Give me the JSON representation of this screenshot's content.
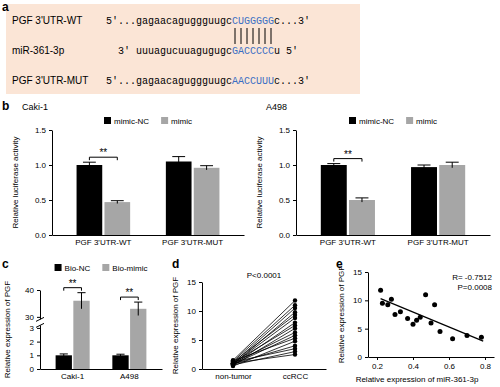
{
  "diagram": {
    "label": "a",
    "rows": [
      {
        "name": "PGF 3'UTR-WT",
        "parts": [
          "5'...gagaacaguggguugc",
          "CUGGGGG",
          "c...3'"
        ]
      },
      {
        "name": "miR-361-3p",
        "parts": [
          "3' uuuagucuuagugugc",
          "GACCCCC",
          "u 5'"
        ]
      },
      {
        "name": "PGF 3'UTR-MUT",
        "parts": [
          "5'...gagaacaguggguugc",
          "AACCUUU",
          "c...3'"
        ]
      }
    ]
  },
  "chart_data": [
    {
      "type": "bar",
      "label": "b",
      "title": "Caki-1",
      "y_label": "Relative luciferase activity",
      "categories": [
        "PGF 3'UTR-WT",
        "PGF 3'UTR-MUT"
      ],
      "series": [
        {
          "name": "mimic-NC",
          "color": "#000000",
          "values": [
            1.0,
            1.05
          ],
          "errors": [
            0.04,
            0.07
          ]
        },
        {
          "name": "mimic",
          "color": "#a6a6a6",
          "values": [
            0.47,
            0.96
          ],
          "errors": [
            0.02,
            0.03
          ]
        }
      ],
      "ylim": [
        0,
        1.5
      ],
      "yticks": [
        {
          "value": 0,
          "label": "0.0"
        },
        0.5,
        {
          "value": 1,
          "label": "1.0"
        },
        1.5
      ],
      "legend": "top",
      "annotations": [
        {
          "text": "**",
          "category": "PGF 3'UTR-WT"
        }
      ]
    },
    {
      "type": "bar",
      "title": "A498",
      "y_label": "Relative luciferase activity",
      "categories": [
        "PGF 3'UTR-WT",
        "PGF 3'UTR-MUT"
      ],
      "series": [
        {
          "name": "mimic-NC",
          "color": "#000000",
          "values": [
            1.0,
            0.97
          ],
          "errors": [
            0.02,
            0.03
          ]
        },
        {
          "name": "mimic",
          "color": "#a6a6a6",
          "values": [
            0.5,
            1.0
          ],
          "errors": [
            0.03,
            0.04
          ]
        }
      ],
      "ylim": [
        0,
        1.5
      ],
      "yticks": [
        {
          "value": 0,
          "label": "0.0"
        },
        0.5,
        {
          "value": 1,
          "label": "1.0"
        },
        1.5
      ],
      "legend": "top",
      "annotations": [
        {
          "text": "**",
          "category": "PGF 3'UTR-WT"
        }
      ]
    },
    {
      "type": "bar",
      "label": "c",
      "y_label": "Relative expression of PGF",
      "categories": [
        "Caki-1",
        "A498"
      ],
      "series": [
        {
          "name": "Bio-NC",
          "color": "#000000",
          "values": [
            1.0,
            1.0
          ],
          "errors": [
            0.1,
            0.08
          ]
        },
        {
          "name": "Bio-mimic",
          "color": "#a6a6a6",
          "values": [
            36,
            33
          ],
          "errors": [
            3,
            2.5
          ]
        }
      ],
      "ylim": [
        0,
        40
      ],
      "yticks": [
        0,
        1,
        2,
        3,
        30,
        40
      ],
      "legend": "top",
      "annotations": [
        {
          "text": "**",
          "category": "Caki-1"
        },
        {
          "text": "**",
          "category": "A498"
        }
      ]
    },
    {
      "type": "line",
      "label": "d",
      "y_label": "Relative expression of PGF",
      "categories": [
        "non-tumor",
        "ccRCC"
      ],
      "color": "#000000",
      "marker": "circle",
      "series": [
        {
          "values": [
            1.5,
            11.8
          ]
        },
        {
          "values": [
            1.3,
            11.0
          ]
        },
        {
          "values": [
            1.0,
            10.5
          ]
        },
        {
          "values": [
            0.8,
            9.8
          ]
        },
        {
          "values": [
            1.2,
            9.3
          ]
        },
        {
          "values": [
            0.9,
            8.8
          ]
        },
        {
          "values": [
            0.7,
            8.0
          ]
        },
        {
          "values": [
            1.1,
            7.5
          ]
        },
        {
          "values": [
            0.6,
            7.0
          ]
        },
        {
          "values": [
            1.0,
            6.3
          ]
        },
        {
          "values": [
            0.8,
            5.8
          ]
        },
        {
          "values": [
            1.4,
            5.3
          ]
        },
        {
          "values": [
            0.5,
            4.8
          ]
        },
        {
          "values": [
            0.9,
            4.0
          ]
        },
        {
          "values": [
            1.2,
            3.5
          ]
        },
        {
          "values": [
            0.7,
            3.0
          ]
        },
        {
          "values": [
            1.0,
            2.5
          ]
        }
      ],
      "ylim": [
        0,
        15
      ],
      "yticks": [
        0,
        5,
        10,
        15
      ],
      "annotations": [
        {
          "text": "P<0.0001"
        }
      ]
    },
    {
      "type": "scatter",
      "label": "e",
      "x_label": "Relative expression of miR-361-3p",
      "y_label": "Relative expression of PGF",
      "color": "#000000",
      "series": [
        {
          "type": "scatter",
          "marker": "circle",
          "x": [
            0.22,
            0.23,
            0.26,
            0.28,
            0.3,
            0.33,
            0.37,
            0.4,
            0.42,
            0.44,
            0.47,
            0.5,
            0.52,
            0.55,
            0.62,
            0.7,
            0.78
          ],
          "values": [
            11.8,
            9.5,
            9.2,
            10.2,
            7.5,
            8.0,
            6.8,
            5.8,
            6.5,
            7.0,
            11.0,
            6.0,
            9.2,
            4.5,
            3.2,
            3.8,
            3.5
          ]
        },
        {
          "type": "line",
          "x": [
            0.22,
            0.79
          ],
          "values": [
            10.3,
            2.8
          ]
        }
      ],
      "xlim": [
        0.15,
        0.85
      ],
      "xticks": [
        0.2,
        0.4,
        0.6,
        0.8
      ],
      "ylim": [
        0,
        15
      ],
      "yticks": [
        0,
        5,
        10,
        15
      ],
      "annotations": [
        {
          "text": "R= -0.7512"
        },
        {
          "text": "P=0.0008"
        }
      ]
    }
  ]
}
